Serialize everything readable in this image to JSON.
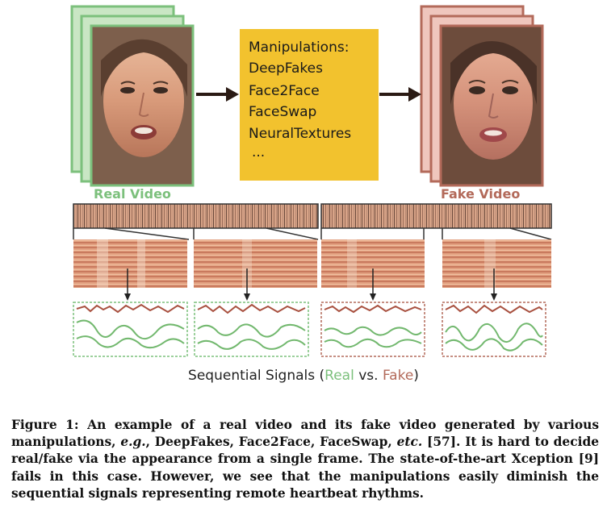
{
  "manipulations": {
    "heading": "Manipulations:",
    "items": [
      "DeepFakes",
      "Face2Face",
      "FaceSwap",
      "NeuralTextures",
      "..."
    ],
    "box_color": "#f2c22e"
  },
  "labels": {
    "real_video": "Real Video",
    "fake_video": "Fake Video"
  },
  "sequential": {
    "prefix": "Sequential Signals (",
    "real": "Real",
    "vs": " vs. ",
    "fake": "Fake",
    "suffix": ")"
  },
  "caption": {
    "p1": "Figure 1: An example of a real video and its fake video generated by various manipulations, ",
    "eg": "e.g.",
    "p2": ", DeepFakes, Face2Face, FaceSwap, ",
    "etc": "etc.",
    "p3": " [57]. It is hard to decide real/fake via the appearance from a single frame. The state-of-the-art Xception [9] fails in this case. However, we see that the manipulations easily diminish the sequential signals representing remote heartbeat rhythms."
  },
  "colors": {
    "real": "#7cc07c",
    "fake": "#b36a5a",
    "red_signal": "#a8503f",
    "green_signal": "#72b86e"
  }
}
